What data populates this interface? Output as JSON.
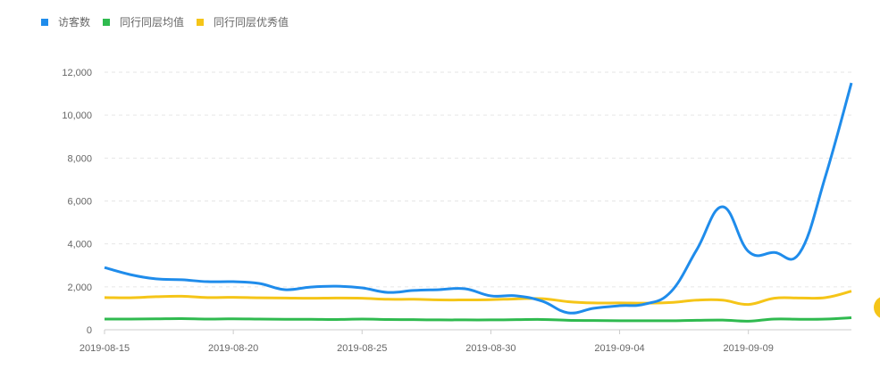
{
  "chart_data": {
    "type": "line",
    "title": "",
    "xlabel": "",
    "ylabel": "",
    "ylim": [
      0,
      12000
    ],
    "yticks": [
      "0",
      "2,000",
      "4,000",
      "6,000",
      "8,000",
      "10,000",
      "12,000"
    ],
    "ytick_values": [
      0,
      2000,
      4000,
      6000,
      8000,
      10000,
      12000
    ],
    "xtick_labels": [
      "2019-08-15",
      "2019-08-20",
      "2019-08-25",
      "2019-08-30",
      "2019-09-04",
      "2019-09-09"
    ],
    "xtick_index": [
      0,
      5,
      10,
      15,
      20,
      25
    ],
    "x": [
      "2019-08-15",
      "2019-08-16",
      "2019-08-17",
      "2019-08-18",
      "2019-08-19",
      "2019-08-20",
      "2019-08-21",
      "2019-08-22",
      "2019-08-23",
      "2019-08-24",
      "2019-08-25",
      "2019-08-26",
      "2019-08-27",
      "2019-08-28",
      "2019-08-29",
      "2019-08-30",
      "2019-08-31",
      "2019-09-01",
      "2019-09-02",
      "2019-09-03",
      "2019-09-04",
      "2019-09-05",
      "2019-09-06",
      "2019-09-07",
      "2019-09-08",
      "2019-09-09",
      "2019-09-10",
      "2019-09-11",
      "2019-09-12",
      "2019-09-13"
    ],
    "grid": true,
    "legend_position": "top-left",
    "series": [
      {
        "name": "访客数",
        "color": "#1f8ceb",
        "values": [
          2900,
          2570,
          2370,
          2330,
          2240,
          2240,
          2160,
          1870,
          1990,
          2030,
          1950,
          1740,
          1830,
          1870,
          1910,
          1580,
          1580,
          1330,
          790,
          1000,
          1120,
          1200,
          1780,
          3740,
          5730,
          3650,
          3600,
          3600,
          7180,
          11500
        ]
      },
      {
        "name": "同行同层均值",
        "color": "#2fba4f",
        "values": [
          500,
          500,
          510,
          520,
          500,
          510,
          500,
          490,
          490,
          480,
          500,
          480,
          470,
          460,
          460,
          460,
          470,
          480,
          440,
          430,
          420,
          420,
          420,
          440,
          450,
          400,
          500,
          490,
          500,
          560
        ]
      },
      {
        "name": "同行同层优秀值",
        "color": "#f5c518",
        "values": [
          1500,
          1490,
          1540,
          1560,
          1500,
          1510,
          1490,
          1480,
          1470,
          1480,
          1470,
          1420,
          1420,
          1390,
          1390,
          1400,
          1440,
          1450,
          1310,
          1250,
          1250,
          1240,
          1270,
          1380,
          1380,
          1180,
          1470,
          1480,
          1500,
          1800
        ]
      }
    ]
  }
}
